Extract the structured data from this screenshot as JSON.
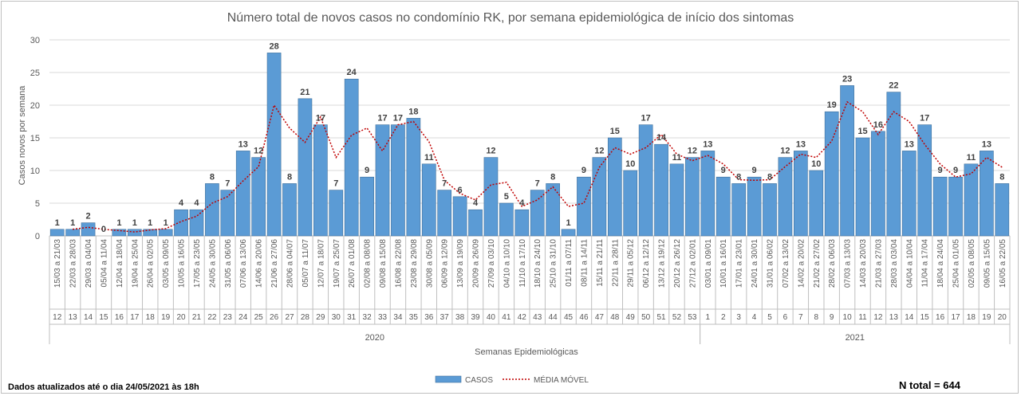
{
  "chart_data": {
    "type": "bar",
    "title": "Número total de novos casos no condomínio RK, por semana epidemiológica de início dos sintomas",
    "ylabel": "Casos novos por semana",
    "xlabel": "Semanas Epidemiológicas",
    "ylim": [
      0,
      30
    ],
    "yticks": [
      0,
      5,
      10,
      15,
      20,
      25,
      30
    ],
    "grid": true,
    "legend_position": "bottom",
    "categories": [
      "15/03 a 21/03",
      "22/03 a 28/03",
      "29/03 a 04/04",
      "05/04 a 11/04",
      "12/04 a 18/04",
      "19/04 a 25/04",
      "26/04 a 02/05",
      "03/05 a 09/05",
      "10/05 a 16/05",
      "17/05 a 23/05",
      "24/05 a 30/05",
      "31/05 a 06/06",
      "07/06 a 13/06",
      "14/06 a 20/06",
      "21/06 a 27/06",
      "28/06 a 04/07",
      "05/07 a 11/07",
      "12/07 a 18/07",
      "19/07 a 25/07",
      "26/07 a 01/08",
      "02/08 a 08/08",
      "09/08 a 15/08",
      "16/08 a 22/08",
      "23/08 a 29/08",
      "30/08 a 05/09",
      "06/09 a 12/09",
      "13/09 a 19/09",
      "20/09 a 26/09",
      "27/09 a 03/10",
      "04/10 a 10/10",
      "11/10 a 17/10",
      "18/10 a 24/10",
      "25/10 a 31/10",
      "01/11 a 07/11",
      "08/11 a 14/11",
      "15/11 a 21/11",
      "22/11 a 28/11",
      "29/11 a 05/12",
      "06/12 a 12/12",
      "13/12 a 19/12",
      "20/12 a 26/12",
      "27/12 a 02/01",
      "03/01 a 09/01",
      "10/01 a 16/01",
      "17/01 a 23/01",
      "24/01 a 30/01",
      "31/01 a 06/02",
      "07/02 a 13/02",
      "14/02 a 20/02",
      "21/02 a 27/02",
      "28/02 a 06/03",
      "07/03 a 13/03",
      "14/03 a 20/03",
      "21/03 a 27/03",
      "28/03 a 03/04",
      "04/04 a 10/04",
      "11/04 a 17/04",
      "18/04 a 24/04",
      "25/04 a 01/05",
      "02/05 a 08/05",
      "09/05 a 15/05",
      "16/05 a 22/05"
    ],
    "weeks": [
      "12",
      "13",
      "14",
      "15",
      "16",
      "17",
      "18",
      "19",
      "20",
      "21",
      "22",
      "23",
      "24",
      "25",
      "26",
      "27",
      "28",
      "29",
      "30",
      "31",
      "32",
      "33",
      "34",
      "35",
      "36",
      "37",
      "38",
      "39",
      "40",
      "41",
      "42",
      "43",
      "44",
      "45",
      "46",
      "47",
      "48",
      "49",
      "50",
      "51",
      "52",
      "53",
      "1",
      "2",
      "3",
      "4",
      "5",
      "6",
      "7",
      "8",
      "9",
      "10",
      "11",
      "12",
      "13",
      "14",
      "15",
      "16",
      "17",
      "18",
      "19",
      "20"
    ],
    "years": [
      {
        "label": "2020",
        "start": 0,
        "end": 41
      },
      {
        "label": "2021",
        "start": 42,
        "end": 61
      }
    ],
    "series": [
      {
        "name": "CASOS",
        "type": "bar",
        "color": "#5b9bd5",
        "values": [
          1,
          1,
          2,
          0,
          1,
          1,
          1,
          1,
          4,
          4,
          8,
          7,
          13,
          12,
          28,
          8,
          21,
          17,
          7,
          24,
          9,
          17,
          17,
          18,
          11,
          7,
          6,
          4,
          12,
          5,
          4,
          7,
          8,
          1,
          9,
          12,
          15,
          10,
          17,
          14,
          11,
          12,
          13,
          9,
          8,
          9,
          8,
          12,
          13,
          10,
          19,
          23,
          15,
          16,
          22,
          13,
          17,
          9,
          9,
          11,
          13,
          8
        ]
      },
      {
        "name": "MÉDIA MÓVEL",
        "type": "line",
        "style": "dotted",
        "color": "#c00000",
        "values": [
          null,
          1,
          1.3,
          1,
          0.8,
          0.6,
          0.9,
          1.1,
          2.2,
          3,
          5,
          6,
          8.4,
          10.6,
          20,
          16.5,
          14.3,
          18.2,
          12,
          15.4,
          16.5,
          13,
          17,
          17.5,
          14.4,
          8.5,
          6.5,
          5.5,
          7.8,
          8.2,
          4.5,
          5.5,
          7.5,
          4.5,
          5,
          10.5,
          13.5,
          12.5,
          13.5,
          15.5,
          12.5,
          11.5,
          12.3,
          11,
          8.6,
          8.5,
          8.6,
          10.6,
          12.5,
          12,
          14.5,
          20.5,
          19,
          15.5,
          19,
          17.5,
          14,
          11,
          9,
          9.5,
          12,
          10.5
        ]
      }
    ]
  },
  "legend": {
    "bar_label": "CASOS",
    "line_label": "MÉDIA MÓVEL"
  },
  "footer": {
    "updated": "Dados atualizados  até o dia 24/05/2021 às 18h",
    "total": "N total = 644"
  }
}
